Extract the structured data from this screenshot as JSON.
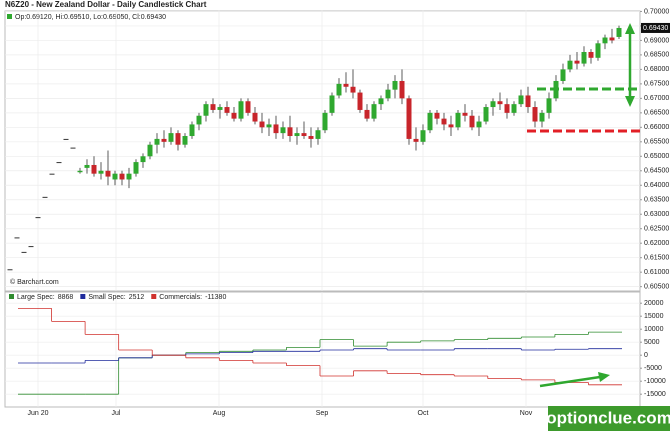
{
  "watermark": "optionclue.com",
  "chart_data": [
    {
      "type": "candlestick",
      "title": "N6Z20 - New Zealand Dollar - Daily Candlestick Chart",
      "ohlc_readout": "Op:0.69120, Hi:0.69510, Lo:0.69050, Cl:0.69430",
      "source": "© Barchart.com",
      "up_color": "#2fa82f",
      "down_color": "#c8252b",
      "grid": true,
      "ylim": [
        0.6035,
        0.7005
      ],
      "yticks": [
        {
          "value": 0.7,
          "label": "0.70000"
        },
        {
          "value": 0.695,
          "label": "0.69500"
        },
        {
          "value": 0.69,
          "label": "0.69000"
        },
        {
          "value": 0.685,
          "label": "0.68500"
        },
        {
          "value": 0.68,
          "label": "0.68000"
        },
        {
          "value": 0.675,
          "label": "0.67500"
        },
        {
          "value": 0.67,
          "label": "0.67000"
        },
        {
          "value": 0.665,
          "label": "0.66500"
        },
        {
          "value": 0.66,
          "label": "0.66000"
        },
        {
          "value": 0.655,
          "label": "0.65500"
        },
        {
          "value": 0.65,
          "label": "0.65000"
        },
        {
          "value": 0.645,
          "label": "0.64500"
        },
        {
          "value": 0.64,
          "label": "0.64000"
        },
        {
          "value": 0.635,
          "label": "0.63500"
        },
        {
          "value": 0.63,
          "label": "0.63000"
        },
        {
          "value": 0.625,
          "label": "0.62500"
        },
        {
          "value": 0.62,
          "label": "0.62000"
        },
        {
          "value": 0.615,
          "label": "0.61500"
        },
        {
          "value": 0.61,
          "label": "0.61000"
        },
        {
          "value": 0.605,
          "label": "0.60500"
        }
      ],
      "last_price": {
        "value": 0.6943,
        "label": "0.69430"
      },
      "ohlc": [
        [
          0.611,
          0.611,
          0.611,
          0.611
        ],
        [
          0.622,
          0.622,
          0.622,
          0.622
        ],
        [
          0.617,
          0.617,
          0.617,
          0.617
        ],
        [
          0.619,
          0.619,
          0.619,
          0.619
        ],
        [
          0.629,
          0.629,
          0.629,
          0.629
        ],
        [
          0.636,
          0.636,
          0.636,
          0.636
        ],
        [
          0.644,
          0.644,
          0.644,
          0.644
        ],
        [
          0.648,
          0.648,
          0.648,
          0.648
        ],
        [
          0.656,
          0.656,
          0.656,
          0.656
        ],
        [
          0.653,
          0.653,
          0.653,
          0.653
        ],
        [
          0.6445,
          0.646,
          0.644,
          0.645
        ],
        [
          0.646,
          0.649,
          0.644,
          0.647
        ],
        [
          0.647,
          0.65,
          0.643,
          0.644
        ],
        [
          0.644,
          0.648,
          0.642,
          0.645
        ],
        [
          0.645,
          0.652,
          0.64,
          0.643
        ],
        [
          0.642,
          0.645,
          0.64,
          0.644
        ],
        [
          0.644,
          0.645,
          0.64,
          0.642
        ],
        [
          0.642,
          0.646,
          0.639,
          0.644
        ],
        [
          0.644,
          0.649,
          0.643,
          0.648
        ],
        [
          0.648,
          0.651,
          0.646,
          0.65
        ],
        [
          0.65,
          0.655,
          0.649,
          0.654
        ],
        [
          0.654,
          0.658,
          0.651,
          0.656
        ],
        [
          0.656,
          0.659,
          0.653,
          0.655
        ],
        [
          0.655,
          0.66,
          0.654,
          0.658
        ],
        [
          0.658,
          0.659,
          0.652,
          0.654
        ],
        [
          0.654,
          0.658,
          0.653,
          0.657
        ],
        [
          0.657,
          0.662,
          0.656,
          0.661
        ],
        [
          0.661,
          0.665,
          0.659,
          0.664
        ],
        [
          0.664,
          0.669,
          0.662,
          0.668
        ],
        [
          0.668,
          0.67,
          0.665,
          0.666
        ],
        [
          0.666,
          0.668,
          0.663,
          0.667
        ],
        [
          0.667,
          0.669,
          0.664,
          0.665
        ],
        [
          0.665,
          0.667,
          0.662,
          0.663
        ],
        [
          0.663,
          0.67,
          0.662,
          0.669
        ],
        [
          0.669,
          0.67,
          0.664,
          0.665
        ],
        [
          0.665,
          0.667,
          0.661,
          0.662
        ],
        [
          0.662,
          0.665,
          0.658,
          0.66
        ],
        [
          0.66,
          0.663,
          0.657,
          0.661
        ],
        [
          0.661,
          0.664,
          0.656,
          0.658
        ],
        [
          0.658,
          0.662,
          0.656,
          0.66
        ],
        [
          0.66,
          0.664,
          0.655,
          0.657
        ],
        [
          0.657,
          0.66,
          0.654,
          0.658
        ],
        [
          0.658,
          0.662,
          0.656,
          0.657
        ],
        [
          0.657,
          0.66,
          0.653,
          0.656
        ],
        [
          0.656,
          0.66,
          0.654,
          0.659
        ],
        [
          0.659,
          0.666,
          0.658,
          0.665
        ],
        [
          0.665,
          0.672,
          0.664,
          0.671
        ],
        [
          0.671,
          0.677,
          0.67,
          0.675
        ],
        [
          0.675,
          0.679,
          0.672,
          0.674
        ],
        [
          0.674,
          0.68,
          0.67,
          0.672
        ],
        [
          0.672,
          0.673,
          0.665,
          0.666
        ],
        [
          0.666,
          0.668,
          0.662,
          0.663
        ],
        [
          0.663,
          0.669,
          0.662,
          0.668
        ],
        [
          0.668,
          0.671,
          0.666,
          0.67
        ],
        [
          0.67,
          0.675,
          0.669,
          0.673
        ],
        [
          0.673,
          0.678,
          0.67,
          0.676
        ],
        [
          0.676,
          0.68,
          0.668,
          0.67
        ],
        [
          0.67,
          0.671,
          0.654,
          0.656
        ],
        [
          0.656,
          0.66,
          0.652,
          0.655
        ],
        [
          0.655,
          0.661,
          0.654,
          0.659
        ],
        [
          0.659,
          0.666,
          0.658,
          0.665
        ],
        [
          0.665,
          0.666,
          0.661,
          0.663
        ],
        [
          0.663,
          0.665,
          0.659,
          0.661
        ],
        [
          0.661,
          0.664,
          0.657,
          0.66
        ],
        [
          0.66,
          0.666,
          0.659,
          0.665
        ],
        [
          0.665,
          0.668,
          0.662,
          0.664
        ],
        [
          0.664,
          0.666,
          0.659,
          0.66
        ],
        [
          0.66,
          0.664,
          0.657,
          0.662
        ],
        [
          0.662,
          0.668,
          0.661,
          0.667
        ],
        [
          0.667,
          0.67,
          0.664,
          0.669
        ],
        [
          0.669,
          0.672,
          0.666,
          0.668
        ],
        [
          0.668,
          0.67,
          0.663,
          0.665
        ],
        [
          0.665,
          0.669,
          0.664,
          0.668
        ],
        [
          0.668,
          0.673,
          0.667,
          0.671
        ],
        [
          0.671,
          0.674,
          0.665,
          0.667
        ],
        [
          0.667,
          0.669,
          0.66,
          0.662
        ],
        [
          0.662,
          0.666,
          0.66,
          0.665
        ],
        [
          0.665,
          0.672,
          0.663,
          0.67
        ],
        [
          0.67,
          0.678,
          0.669,
          0.676
        ],
        [
          0.676,
          0.682,
          0.675,
          0.68
        ],
        [
          0.68,
          0.685,
          0.679,
          0.683
        ],
        [
          0.683,
          0.686,
          0.68,
          0.682
        ],
        [
          0.682,
          0.688,
          0.681,
          0.686
        ],
        [
          0.686,
          0.687,
          0.682,
          0.684
        ],
        [
          0.684,
          0.69,
          0.683,
          0.689
        ],
        [
          0.689,
          0.692,
          0.687,
          0.691
        ],
        [
          0.691,
          0.694,
          0.689,
          0.69
        ],
        [
          0.6912,
          0.6951,
          0.6905,
          0.6943
        ]
      ]
    },
    {
      "type": "line",
      "step": true,
      "grid": true,
      "legend": "top-left",
      "ylim": [
        -18000,
        22000
      ],
      "yticks": [
        20000,
        15000,
        10000,
        5000,
        0,
        -5000,
        -10000,
        -15000
      ],
      "xtick_labels": [
        "Jun 20",
        "Jul",
        "Aug",
        "Sep",
        "Oct",
        "Nov"
      ],
      "series": [
        {
          "name": "Large Spec:",
          "color": "#2e8b2e",
          "values": [
            -15000,
            -15000,
            -15000,
            -1000,
            0,
            1000,
            1500,
            2000,
            3000,
            6000,
            3500,
            5000,
            5500,
            6000,
            6500,
            7000,
            8000,
            8868
          ]
        },
        {
          "name": "Small Spec:",
          "color": "#1f2a9c",
          "values": [
            -3000,
            -3000,
            -2000,
            -1000,
            0,
            500,
            1000,
            1500,
            1500,
            2000,
            2500,
            2000,
            2000,
            2500,
            2500,
            2000,
            2300,
            2512
          ]
        },
        {
          "name": "Commercials:",
          "color": "#d0312d",
          "values": [
            18000,
            13000,
            8000,
            2000,
            0,
            -1000,
            -2000,
            -3000,
            -4000,
            -8000,
            -6000,
            -7000,
            -7500,
            -8000,
            -9000,
            -9500,
            -10500,
            -11380
          ]
        }
      ]
    }
  ]
}
